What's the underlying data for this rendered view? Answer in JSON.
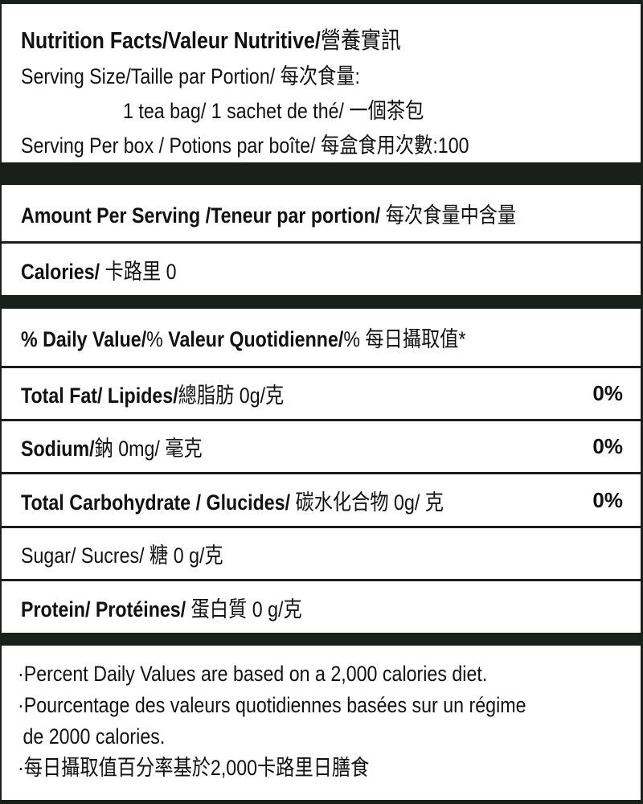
{
  "header": {
    "title_bold": "Nutrition Facts/Valeur Nutritive/",
    "title_cjk": "營養實訊",
    "serving_size_label": "Serving Size/Taille par Portion/ 每次食量:",
    "serving_size_value": "1 tea bag/ 1 sachet de thé/ 一個茶包",
    "servings_per_box": "Serving Per  box / Potions par boîte/ 每盒食用次數:100"
  },
  "amount_per_serving": {
    "bold": "Amount Per Serving /Teneur par portion/",
    "cjk": " 每次食量中含量"
  },
  "calories": {
    "bold": "Calories/",
    "rest": " 卡路里 0"
  },
  "daily_value": {
    "bold1": "% Daily Value/",
    "mid": "% ",
    "bold2": "Valeur Quotidienne/",
    "rest": "% 每日攝取值*"
  },
  "nutrients": [
    {
      "bold": "Total Fat/ Lipides/",
      "rest": "總脂肪 0g/克",
      "percent": "0%"
    },
    {
      "bold": "Sodium/",
      "rest": "鈉 0mg/ 毫克",
      "percent": "0%"
    },
    {
      "bold": "Total Carbohydrate / Glucides/",
      "rest": " 碳水化合物 0g/ 克",
      "percent": "0%"
    },
    {
      "bold": "",
      "rest": "Sugar/ Sucres/ 糖  0 g/克",
      "percent": ""
    },
    {
      "bold": "Protein/ Protéines/",
      "rest": " 蛋白質  0 g/克",
      "percent": ""
    }
  ],
  "footnotes": [
    "·Percent Daily Values are based on a 2,000 calories diet.",
    "·Pourcentage des valeurs quotidiennes basées sur un régime",
    " de 2000 calories.",
    "·每日攝取值百分率基於2,000卡路里日膳食"
  ],
  "colors": {
    "border": "#1b1f1b",
    "background": "#ffffff",
    "text": "#111111"
  }
}
